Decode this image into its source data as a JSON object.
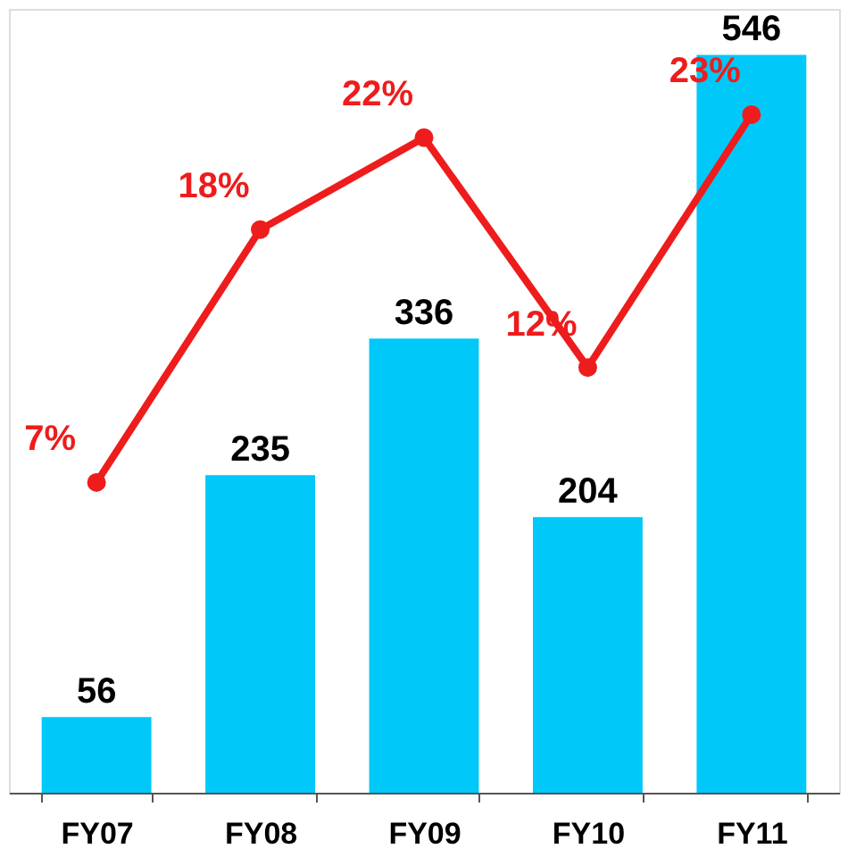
{
  "chart_data": {
    "type": "bar",
    "categories": [
      "FY07",
      "FY08",
      "FY09",
      "FY10",
      "FY11"
    ],
    "ylim": [
      0,
      580
    ],
    "y2lim": [
      -6.5,
      27.6
    ],
    "tick_labels": "x",
    "grid": false,
    "data_labels": true,
    "series": [
      {
        "color": "#00c8f8",
        "values": [
          56,
          235,
          336,
          204,
          546
        ]
      },
      {
        "type": "line",
        "axis": "y2",
        "color": "#ee1c1c",
        "marker": "circle",
        "line_style": "solid",
        "values": [
          7,
          18,
          22,
          12,
          23
        ],
        "value_labels": [
          "7%",
          "18%",
          "22%",
          "12%",
          "23%"
        ]
      }
    ]
  }
}
